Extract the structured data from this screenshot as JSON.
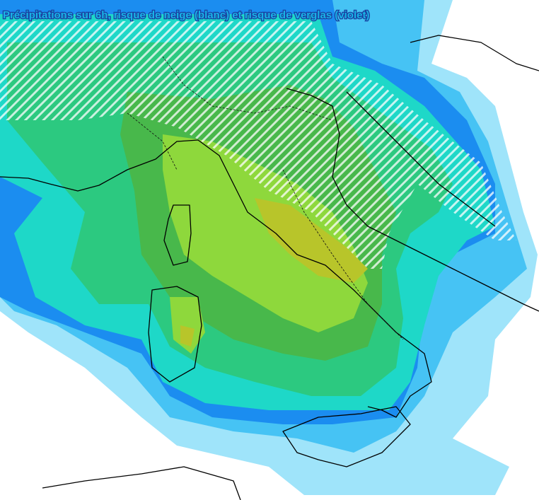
{
  "title": "Précipitations sur 6h, risque de neige (blanc) et risque de verglas (violet)"
}
